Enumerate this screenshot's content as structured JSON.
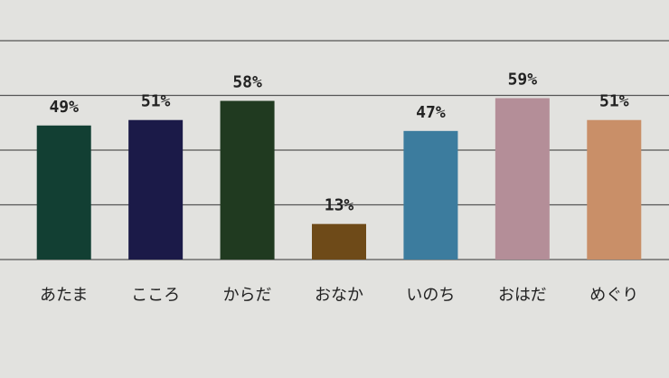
{
  "chart_data": {
    "type": "bar",
    "categories": [
      "あたま",
      "こころ",
      "からだ",
      "おなか",
      "いのち",
      "おはだ",
      "めぐり"
    ],
    "values": [
      49,
      51,
      58,
      13,
      47,
      59,
      51
    ],
    "value_labels": [
      "49%",
      "51%",
      "58%",
      "13%",
      "47%",
      "59%",
      "51%"
    ],
    "colors": [
      "#123f33",
      "#1b1a48",
      "#203a20",
      "#6e4a18",
      "#3c7c9e",
      "#b48e98",
      "#c98f68"
    ],
    "ylim": [
      0,
      80
    ],
    "yticks": [
      0,
      20,
      40,
      60,
      80
    ],
    "grid": true
  }
}
